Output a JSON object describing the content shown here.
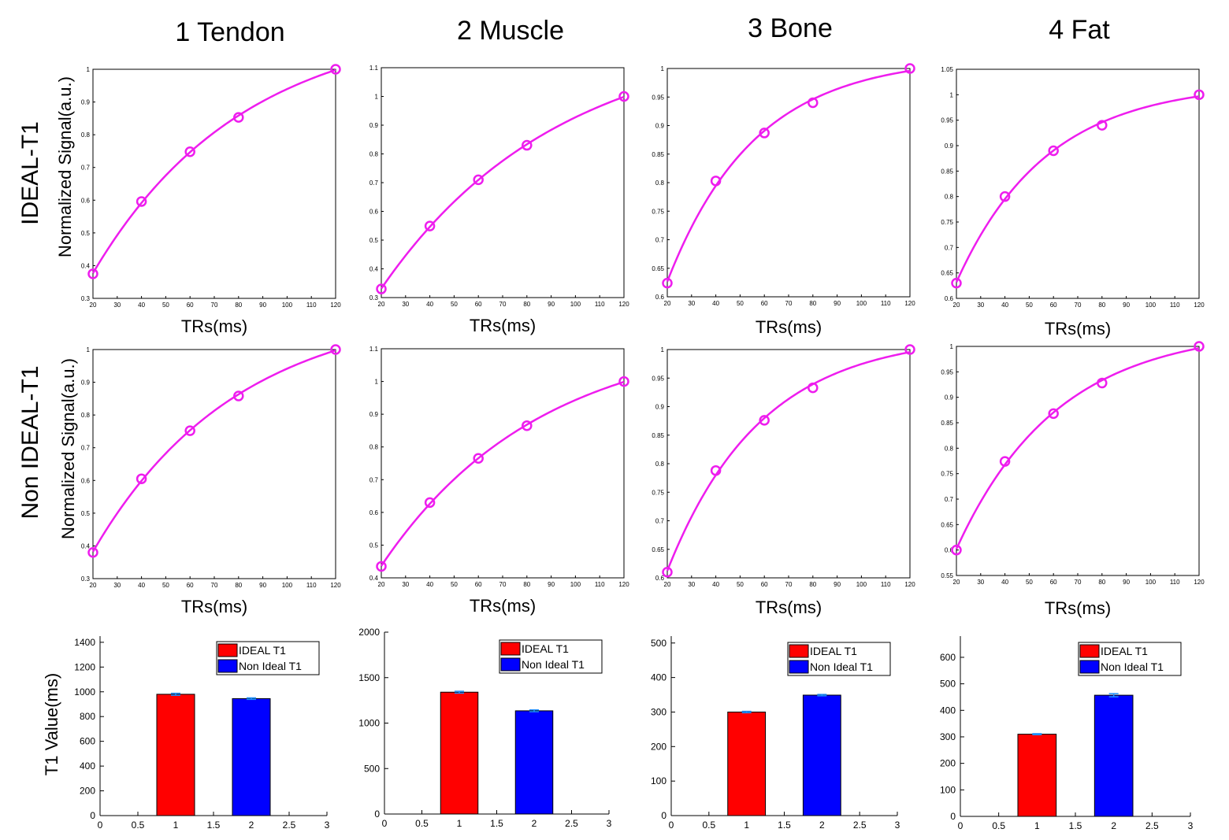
{
  "figure": {
    "column_titles": [
      "1 Tendon",
      "2 Muscle",
      "3 Bone",
      "4 Fat"
    ],
    "row_labels": [
      "IDEAL-T1",
      "Non IDEAL-T1"
    ],
    "curve_ylabel": "Normalized Signal(a.u.)",
    "bar_ylabel": "T1 Value(ms)",
    "colors": {
      "curve": "#ee1dee",
      "ideal_bar": "#ff0000",
      "non_ideal_bar": "#0000ff",
      "error_bar": "#1e90ff"
    }
  },
  "chart_data": [
    {
      "id": "r0c0",
      "type": "line",
      "title": "",
      "xlabel": "TRs(ms)",
      "ylabel": "Normalized Signal(a.u.)",
      "x": [
        20,
        40,
        60,
        80,
        120
      ],
      "y": [
        0.375,
        0.596,
        0.748,
        0.853,
        1.0
      ],
      "xlim": [
        20,
        120
      ],
      "ylim": [
        0.3,
        1.0
      ],
      "xticks": [
        20,
        30,
        40,
        50,
        60,
        70,
        80,
        90,
        100,
        110,
        120
      ],
      "yticks": [
        0.3,
        0.4,
        0.5,
        0.6,
        0.7,
        0.8,
        0.9,
        1
      ],
      "ytick_labels": [
        "0.3",
        "0.4",
        "0.5",
        "0.6",
        "0.7",
        "0.8",
        "0.9",
        "1"
      ]
    },
    {
      "id": "r0c1",
      "type": "line",
      "title": "",
      "xlabel": "TRs(ms)",
      "ylabel": "",
      "x": [
        20,
        40,
        60,
        80,
        120
      ],
      "y": [
        0.33,
        0.549,
        0.71,
        0.83,
        1.0
      ],
      "xlim": [
        20,
        120
      ],
      "ylim": [
        0.3,
        1.1
      ],
      "xticks": [
        20,
        30,
        40,
        50,
        60,
        70,
        80,
        90,
        100,
        110,
        120
      ],
      "yticks": [
        0.3,
        0.4,
        0.5,
        0.6,
        0.7,
        0.8,
        0.9,
        1,
        1.1
      ],
      "ytick_labels": [
        "0.3",
        "0.4",
        "0.5",
        "0.6",
        "0.7",
        "0.8",
        "0.9",
        "1",
        "1.1"
      ]
    },
    {
      "id": "r0c2",
      "type": "line",
      "title": "",
      "xlabel": "TRs(ms)",
      "ylabel": "",
      "x": [
        20,
        40,
        60,
        80,
        120
      ],
      "y": [
        0.624,
        0.803,
        0.887,
        0.94,
        1.0
      ],
      "xlim": [
        20,
        120
      ],
      "ylim": [
        0.6,
        1.0
      ],
      "xticks": [
        20,
        30,
        40,
        50,
        60,
        70,
        80,
        90,
        100,
        110,
        120
      ],
      "yticks": [
        0.6,
        0.65,
        0.7,
        0.75,
        0.8,
        0.85,
        0.9,
        0.95,
        1
      ],
      "ytick_labels": [
        "0.6",
        "0.65",
        "0.7",
        "0.75",
        "0.8",
        "0.85",
        "0.9",
        "0.95",
        "1"
      ]
    },
    {
      "id": "r0c3",
      "type": "line",
      "title": "",
      "xlabel": "TRs(ms)",
      "ylabel": "",
      "x": [
        20,
        40,
        60,
        80,
        120
      ],
      "y": [
        0.63,
        0.8,
        0.89,
        0.94,
        1.0
      ],
      "xlim": [
        20,
        120
      ],
      "ylim": [
        0.6,
        1.05
      ],
      "xticks": [
        20,
        30,
        40,
        50,
        60,
        70,
        80,
        90,
        100,
        110,
        120
      ],
      "yticks": [
        0.6,
        0.65,
        0.7,
        0.75,
        0.8,
        0.85,
        0.9,
        0.95,
        1,
        1.05
      ],
      "ytick_labels": [
        "0.6",
        "0.65",
        "0.7",
        "0.75",
        "0.8",
        "0.85",
        "0.9",
        "0.95",
        "1",
        "1.05"
      ]
    },
    {
      "id": "r1c0",
      "type": "line",
      "title": "",
      "xlabel": "TRs(ms)",
      "ylabel": "Normalized Signal(a.u.)",
      "x": [
        20,
        40,
        60,
        80,
        120
      ],
      "y": [
        0.38,
        0.605,
        0.752,
        0.858,
        1.0
      ],
      "xlim": [
        20,
        120
      ],
      "ylim": [
        0.3,
        1.0
      ],
      "xticks": [
        20,
        30,
        40,
        50,
        60,
        70,
        80,
        90,
        100,
        110,
        120
      ],
      "yticks": [
        0.3,
        0.4,
        0.5,
        0.6,
        0.7,
        0.8,
        0.9,
        1
      ],
      "ytick_labels": [
        "0.3",
        "0.4",
        "0.5",
        "0.6",
        "0.7",
        "0.8",
        "0.9",
        "1"
      ]
    },
    {
      "id": "r1c1",
      "type": "line",
      "title": "",
      "xlabel": "TRs(ms)",
      "ylabel": "",
      "x": [
        20,
        40,
        60,
        80,
        120
      ],
      "y": [
        0.435,
        0.63,
        0.765,
        0.865,
        1.0
      ],
      "xlim": [
        20,
        120
      ],
      "ylim": [
        0.4,
        1.1
      ],
      "xticks": [
        20,
        30,
        40,
        50,
        60,
        70,
        80,
        90,
        100,
        110,
        120
      ],
      "yticks": [
        0.4,
        0.5,
        0.6,
        0.7,
        0.8,
        0.9,
        1,
        1.1
      ],
      "ytick_labels": [
        "0.4",
        "0.5",
        "0.6",
        "0.7",
        "0.8",
        "0.9",
        "1",
        "1.1"
      ]
    },
    {
      "id": "r1c2",
      "type": "line",
      "title": "",
      "xlabel": "TRs(ms)",
      "ylabel": "",
      "x": [
        20,
        40,
        60,
        80,
        120
      ],
      "y": [
        0.61,
        0.788,
        0.876,
        0.933,
        1.0
      ],
      "xlim": [
        20,
        120
      ],
      "ylim": [
        0.6,
        1.0
      ],
      "xticks": [
        20,
        30,
        40,
        50,
        60,
        70,
        80,
        90,
        100,
        110,
        120
      ],
      "yticks": [
        0.6,
        0.65,
        0.7,
        0.75,
        0.8,
        0.85,
        0.9,
        0.95,
        1
      ],
      "ytick_labels": [
        "0.6",
        "0.65",
        "0.7",
        "0.75",
        "0.8",
        "0.85",
        "0.9",
        "0.95",
        "1"
      ]
    },
    {
      "id": "r1c3",
      "type": "line",
      "title": "",
      "xlabel": "TRs(ms)",
      "ylabel": "",
      "x": [
        20,
        40,
        60,
        80,
        120
      ],
      "y": [
        0.6,
        0.774,
        0.868,
        0.928,
        1.0
      ],
      "xlim": [
        20,
        120
      ],
      "ylim": [
        0.55,
        1.0
      ],
      "xticks": [
        20,
        30,
        40,
        50,
        60,
        70,
        80,
        90,
        100,
        110,
        120
      ],
      "yticks": [
        0.55,
        0.6,
        0.65,
        0.7,
        0.75,
        0.8,
        0.85,
        0.9,
        0.95,
        1
      ],
      "ytick_labels": [
        "0.55",
        "0.6",
        "0.65",
        "0.7",
        "0.75",
        "0.8",
        "0.85",
        "0.9",
        "0.95",
        "1"
      ]
    },
    {
      "id": "r2c0",
      "type": "bar",
      "title": "",
      "xlabel": "",
      "ylabel": "T1 Value(ms)",
      "categories": [
        1,
        2
      ],
      "series": [
        {
          "name": "IDEAL T1",
          "values": [
            980,
            0
          ]
        },
        {
          "name": "Non Ideal T1",
          "values": [
            0,
            945
          ]
        }
      ],
      "values": [
        980,
        945
      ],
      "errors": [
        8,
        6
      ],
      "xlim": [
        0,
        3
      ],
      "ylim": [
        0,
        1450
      ],
      "xticks": [
        0,
        0.5,
        1,
        1.5,
        2,
        2.5,
        3
      ],
      "xtick_labels": [
        "0",
        "0.5",
        "1",
        "1.5",
        "2",
        "2.5",
        "3"
      ],
      "yticks": [
        0,
        200,
        400,
        600,
        800,
        1000,
        1200,
        1400
      ],
      "ytick_labels": [
        "0",
        "200",
        "400",
        "600",
        "800",
        "1000",
        "1200",
        "1400"
      ],
      "legend": [
        "IDEAL T1",
        "Non Ideal T1"
      ],
      "legend_position": "top-right"
    },
    {
      "id": "r2c1",
      "type": "bar",
      "title": "",
      "xlabel": "",
      "ylabel": "",
      "categories": [
        1,
        2
      ],
      "series": [
        {
          "name": "IDEAL T1",
          "values": [
            1340,
            0
          ]
        },
        {
          "name": "Non Ideal T1",
          "values": [
            0,
            1135
          ]
        }
      ],
      "values": [
        1340,
        1135
      ],
      "errors": [
        10,
        10
      ],
      "xlim": [
        0,
        3
      ],
      "ylim": [
        0,
        2000
      ],
      "xticks": [
        0,
        0.5,
        1,
        1.5,
        2,
        2.5,
        3
      ],
      "xtick_labels": [
        "0",
        "0.5",
        "1",
        "1.5",
        "2",
        "2.5",
        "3"
      ],
      "yticks": [
        0,
        500,
        1000,
        1500,
        2000
      ],
      "ytick_labels": [
        "0",
        "500",
        "1000",
        "1500",
        "2000"
      ],
      "legend": [
        "IDEAL T1",
        "Non Ideal T1"
      ],
      "legend_position": "top-right"
    },
    {
      "id": "r2c2",
      "type": "bar",
      "title": "",
      "xlabel": "",
      "ylabel": "",
      "categories": [
        1,
        2
      ],
      "series": [
        {
          "name": "IDEAL T1",
          "values": [
            300,
            0
          ]
        },
        {
          "name": "Non Ideal T1",
          "values": [
            0,
            349
          ]
        }
      ],
      "values": [
        300,
        349
      ],
      "errors": [
        2,
        2
      ],
      "xlim": [
        0,
        3
      ],
      "ylim": [
        0,
        520
      ],
      "xticks": [
        0,
        0.5,
        1,
        1.5,
        2,
        2.5,
        3
      ],
      "xtick_labels": [
        "0",
        "0.5",
        "1",
        "1.5",
        "2",
        "2.5",
        "3"
      ],
      "yticks": [
        0,
        100,
        200,
        300,
        400,
        500
      ],
      "ytick_labels": [
        "0",
        "100",
        "200",
        "300",
        "400",
        "500"
      ],
      "legend": [
        "IDEAL T1",
        "Non Ideal T1"
      ],
      "legend_position": "top-right"
    },
    {
      "id": "r2c3",
      "type": "bar",
      "title": "",
      "xlabel": "",
      "ylabel": "",
      "categories": [
        1,
        2
      ],
      "series": [
        {
          "name": "IDEAL T1",
          "values": [
            310,
            0
          ]
        },
        {
          "name": "Non Ideal T1",
          "values": [
            0,
            457
          ]
        }
      ],
      "values": [
        310,
        457
      ],
      "errors": [
        2,
        6
      ],
      "xlim": [
        0,
        3
      ],
      "ylim": [
        0,
        680
      ],
      "xticks": [
        0,
        0.5,
        1,
        1.5,
        2,
        2.5,
        3
      ],
      "xtick_labels": [
        "0",
        "0.5",
        "1",
        "1.5",
        "2",
        "2.5",
        "3"
      ],
      "yticks": [
        0,
        100,
        200,
        300,
        400,
        500,
        600
      ],
      "ytick_labels": [
        "0",
        "100",
        "200",
        "300",
        "400",
        "500",
        "600"
      ],
      "legend": [
        "IDEAL T1",
        "Non Ideal T1"
      ],
      "legend_position": "top-right"
    }
  ]
}
